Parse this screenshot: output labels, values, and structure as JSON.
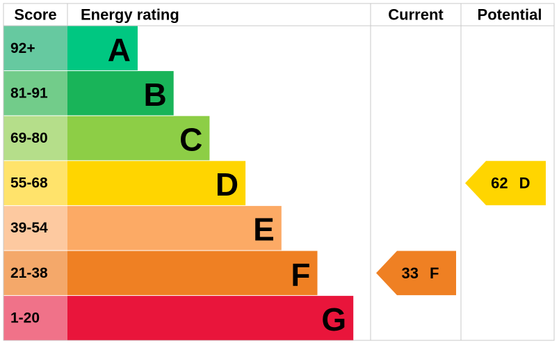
{
  "header": {
    "score": "Score",
    "rating": "Energy rating",
    "current": "Current",
    "potential": "Potential"
  },
  "bands": [
    {
      "score": "92+",
      "letter": "A",
      "color": "#00c781",
      "light": "#66c9a0"
    },
    {
      "score": "81-91",
      "letter": "B",
      "color": "#19b459",
      "light": "#72cc8a"
    },
    {
      "score": "69-80",
      "letter": "C",
      "color": "#8dce46",
      "light": "#b5de8a"
    },
    {
      "score": "55-68",
      "letter": "D",
      "color": "#ffd500",
      "light": "#ffe36b"
    },
    {
      "score": "39-54",
      "letter": "E",
      "color": "#fcaa65",
      "light": "#fdc9a0"
    },
    {
      "score": "21-38",
      "letter": "F",
      "color": "#ef8023",
      "light": "#f4a86a"
    },
    {
      "score": "1-20",
      "letter": "G",
      "color": "#e9153b",
      "light": "#f07289"
    }
  ],
  "current": {
    "score": 33,
    "letter": "F"
  },
  "potential": {
    "score": 62,
    "letter": "D"
  }
}
